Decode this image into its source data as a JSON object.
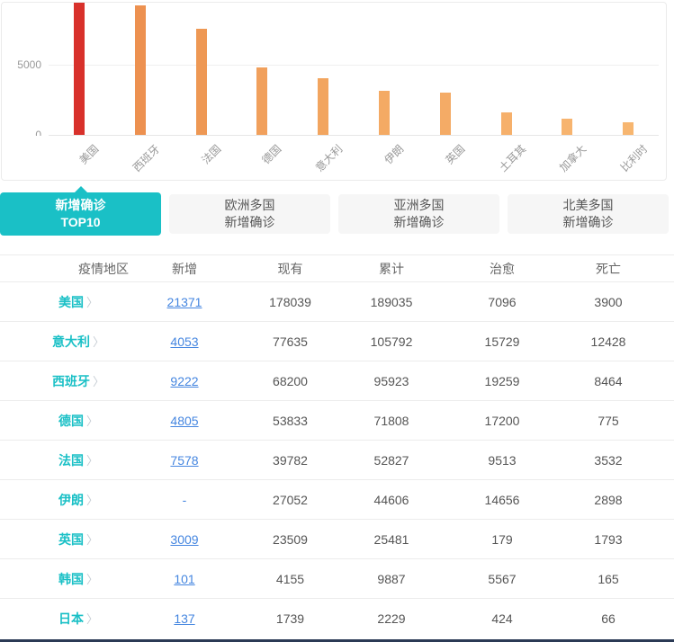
{
  "chart_data": {
    "type": "bar",
    "title": "新增确诊 TOP10",
    "categories": [
      "美国",
      "西班牙",
      "法国",
      "德国",
      "意大利",
      "伊朗",
      "英国",
      "土耳其",
      "加拿大",
      "比利时"
    ],
    "values": [
      21371,
      9222,
      7578,
      4805,
      4053,
      3110,
      3009,
      1610,
      1129,
      876
    ],
    "bar_colors": [
      "#d8312b",
      "#ed9150",
      "#ee9854",
      "#f1a05c",
      "#f2a55f",
      "#f4aa64",
      "#f4ab66",
      "#f6b06b",
      "#f7b46f",
      "#f7b670"
    ],
    "xlabel": "",
    "ylabel": "",
    "ytick_labels": [
      "0",
      "5000"
    ],
    "yticks": [
      0,
      5000
    ],
    "ylim": [
      0,
      9500
    ],
    "grid": true,
    "note": "first bar (美国) clipped at top of plot area"
  },
  "tabs": [
    {
      "line1": "新增确诊",
      "line2": "TOP10",
      "active": true
    },
    {
      "line1": "欧洲多国",
      "line2": "新增确诊",
      "active": false
    },
    {
      "line1": "亚洲多国",
      "line2": "新增确诊",
      "active": false
    },
    {
      "line1": "北美多国",
      "line2": "新增确诊",
      "active": false
    }
  ],
  "table": {
    "headers": [
      "疫情地区",
      "新增",
      "现有",
      "累计",
      "治愈",
      "死亡"
    ],
    "chevron_icon": "〉",
    "rows": [
      {
        "region": "美国",
        "new": "21371",
        "current": "178039",
        "total": "189035",
        "cured": "7096",
        "dead": "3900"
      },
      {
        "region": "意大利",
        "new": "4053",
        "current": "77635",
        "total": "105792",
        "cured": "15729",
        "dead": "12428"
      },
      {
        "region": "西班牙",
        "new": "9222",
        "current": "68200",
        "total": "95923",
        "cured": "19259",
        "dead": "8464"
      },
      {
        "region": "德国",
        "new": "4805",
        "current": "53833",
        "total": "71808",
        "cured": "17200",
        "dead": "775"
      },
      {
        "region": "法国",
        "new": "7578",
        "current": "39782",
        "total": "52827",
        "cured": "9513",
        "dead": "3532"
      },
      {
        "region": "伊朗",
        "new": "-",
        "current": "27052",
        "total": "44606",
        "cured": "14656",
        "dead": "2898"
      },
      {
        "region": "英国",
        "new": "3009",
        "current": "23509",
        "total": "25481",
        "cured": "179",
        "dead": "1793"
      },
      {
        "region": "韩国",
        "new": "101",
        "current": "4155",
        "total": "9887",
        "cured": "5567",
        "dead": "165"
      },
      {
        "region": "日本",
        "new": "137",
        "current": "1739",
        "total": "2229",
        "cured": "424",
        "dead": "66"
      }
    ]
  },
  "colors": {
    "accent_teal": "#1ac0c6",
    "link_blue": "#4586e0",
    "bar_red": "#d8312b",
    "text_gray": "#555555",
    "axis_gray": "#999999",
    "bottom_strip_navy": "#2b3a55"
  }
}
